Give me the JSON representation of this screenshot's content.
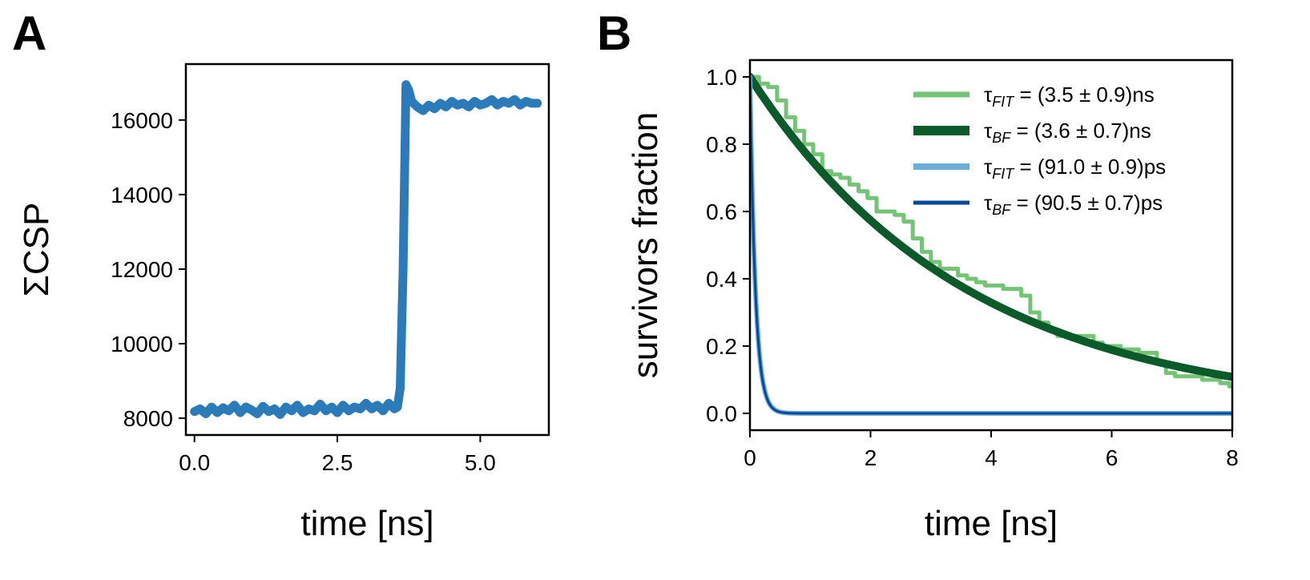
{
  "chart_data": [
    {
      "panel_label": "A",
      "type": "line",
      "xlabel": "time [ns]",
      "ylabel": "ΣCSP",
      "xlim": [
        -0.15,
        6.2
      ],
      "ylim": [
        7550,
        17500
      ],
      "xticks": [
        0.0,
        2.5,
        5.0
      ],
      "xtick_labels": [
        "0.0",
        "2.5",
        "5.0"
      ],
      "yticks": [
        8000,
        10000,
        12000,
        14000,
        16000
      ],
      "ytick_labels": [
        "8000",
        "10000",
        "12000",
        "14000",
        "16000"
      ],
      "series": [
        {
          "name": "ΣCSP",
          "color": "#2b7bba",
          "x": [
            0.0,
            0.1,
            0.2,
            0.3,
            0.4,
            0.5,
            0.6,
            0.7,
            0.8,
            0.9,
            1.0,
            1.1,
            1.2,
            1.3,
            1.4,
            1.5,
            1.6,
            1.7,
            1.8,
            1.9,
            2.0,
            2.1,
            2.2,
            2.3,
            2.4,
            2.5,
            2.6,
            2.7,
            2.8,
            2.9,
            3.0,
            3.1,
            3.2,
            3.3,
            3.4,
            3.5,
            3.55,
            3.6,
            3.65,
            3.7,
            3.75,
            3.8,
            3.9,
            4.0,
            4.1,
            4.2,
            4.3,
            4.4,
            4.5,
            4.6,
            4.7,
            4.8,
            4.9,
            5.0,
            5.1,
            5.2,
            5.3,
            5.4,
            5.5,
            5.6,
            5.7,
            5.8,
            5.9,
            6.0
          ],
          "y": [
            8180,
            8250,
            8120,
            8300,
            8150,
            8280,
            8200,
            8350,
            8150,
            8300,
            8220,
            8120,
            8320,
            8180,
            8250,
            8100,
            8300,
            8200,
            8350,
            8150,
            8250,
            8200,
            8380,
            8200,
            8300,
            8150,
            8350,
            8200,
            8300,
            8250,
            8400,
            8250,
            8350,
            8200,
            8400,
            8250,
            8300,
            8800,
            12000,
            16950,
            16800,
            16500,
            16350,
            16250,
            16400,
            16300,
            16450,
            16350,
            16500,
            16400,
            16450,
            16350,
            16500,
            16400,
            16450,
            16550,
            16400,
            16500,
            16450,
            16550,
            16400,
            16500,
            16450,
            16450
          ]
        }
      ]
    },
    {
      "panel_label": "B",
      "type": "line",
      "xlabel": "time [ns]",
      "ylabel": "survivors fraction",
      "xlim": [
        0,
        8
      ],
      "ylim": [
        -0.05,
        1.05
      ],
      "xticks": [
        0,
        2,
        4,
        6,
        8
      ],
      "xtick_labels": [
        "0",
        "2",
        "4",
        "6",
        "8"
      ],
      "yticks": [
        0.0,
        0.2,
        0.4,
        0.6,
        0.8,
        1.0
      ],
      "ytick_labels": [
        "0.0",
        "0.2",
        "0.4",
        "0.6",
        "0.8",
        "1.0"
      ],
      "legend_position": "top-right",
      "series": [
        {
          "name": "τ_FIT = (3.5 ± 0.9)ns",
          "legend_symbol": "τ",
          "legend_sub": "FIT",
          "legend_text": " = (3.5 ± 0.9)ns",
          "color": "#74c476",
          "style": "step",
          "x": [
            0,
            0.15,
            0.3,
            0.45,
            0.6,
            0.75,
            0.9,
            1.05,
            1.2,
            1.35,
            1.5,
            1.65,
            1.8,
            1.95,
            2.1,
            2.25,
            2.4,
            2.55,
            2.7,
            2.85,
            3.0,
            3.15,
            3.3,
            3.45,
            3.6,
            3.75,
            3.9,
            4.05,
            4.2,
            4.35,
            4.5,
            4.65,
            4.8,
            4.95,
            5.1,
            5.25,
            5.4,
            5.55,
            5.7,
            5.85,
            6.0,
            6.15,
            6.3,
            6.45,
            6.6,
            6.75,
            6.9,
            7.05,
            7.2,
            7.35,
            7.5,
            7.65,
            7.8,
            7.95
          ],
          "y": [
            1.0,
            0.98,
            0.97,
            0.93,
            0.88,
            0.84,
            0.8,
            0.77,
            0.72,
            0.71,
            0.7,
            0.68,
            0.66,
            0.64,
            0.6,
            0.6,
            0.59,
            0.57,
            0.52,
            0.48,
            0.45,
            0.43,
            0.43,
            0.41,
            0.4,
            0.39,
            0.38,
            0.38,
            0.37,
            0.37,
            0.35,
            0.3,
            0.27,
            0.25,
            0.23,
            0.23,
            0.23,
            0.23,
            0.21,
            0.2,
            0.2,
            0.19,
            0.19,
            0.18,
            0.18,
            0.15,
            0.12,
            0.11,
            0.11,
            0.11,
            0.1,
            0.1,
            0.09,
            0.08
          ]
        },
        {
          "name": "τ_BF = (3.6 ± 0.7)ns",
          "legend_symbol": "τ",
          "legend_sub": "BF",
          "legend_text": " = (3.6 ± 0.7)ns",
          "color": "#0b5a2a",
          "style": "exp",
          "tau": 3.6
        },
        {
          "name": "τ_FIT = (91.0 ± 0.9)ps",
          "legend_symbol": "τ",
          "legend_sub": "FIT",
          "legend_text": " = (91.0 ± 0.9)ps",
          "color": "#6baed6",
          "style": "exp",
          "tau": 0.091
        },
        {
          "name": "τ_BF = (90.5 ± 0.7)ps",
          "legend_symbol": "τ",
          "legend_sub": "BF",
          "legend_text": " = (90.5 ± 0.7)ps",
          "color": "#08479a",
          "style": "exp",
          "tau": 0.0905
        }
      ]
    }
  ]
}
